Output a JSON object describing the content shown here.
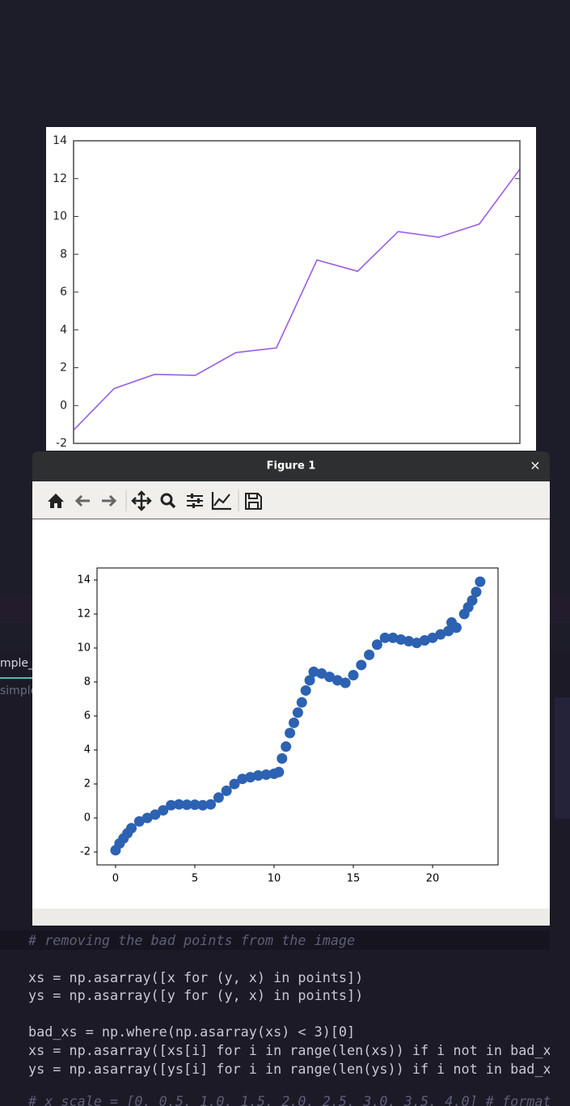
{
  "chart_data": [
    {
      "type": "line",
      "x": [
        0,
        1,
        2,
        3,
        4,
        5,
        6,
        7,
        8,
        9,
        10,
        11
      ],
      "values": [
        -1.3,
        0.9,
        1.65,
        1.6,
        2.8,
        3.05,
        7.7,
        7.1,
        9.2,
        8.9,
        9.6,
        12.5
      ],
      "color": "#9b5de5",
      "xlim": [
        0,
        11
      ],
      "ylim": [
        -2,
        14
      ],
      "yticks": [
        -2,
        0,
        2,
        4,
        6,
        8,
        10,
        12,
        14
      ]
    },
    {
      "type": "scatter",
      "x": [
        0,
        0.25,
        0.5,
        0.75,
        1,
        1.5,
        2,
        2.5,
        3,
        3.5,
        4,
        4.5,
        5,
        5.5,
        6,
        6.5,
        7,
        7.5,
        8,
        8.5,
        9,
        9.5,
        10,
        10.3,
        10.5,
        10.75,
        11,
        11.25,
        11.5,
        11.75,
        12,
        12.25,
        12.5,
        13,
        13.5,
        14,
        14.5,
        15,
        15.5,
        16,
        16.5,
        17,
        17.5,
        18,
        18.5,
        19,
        19.5,
        20,
        20.5,
        21,
        21.2,
        21.5,
        22,
        22.25,
        22.5,
        22.75,
        23
      ],
      "values": [
        -1.9,
        -1.5,
        -1.2,
        -0.9,
        -0.6,
        -0.2,
        0.0,
        0.2,
        0.45,
        0.75,
        0.8,
        0.78,
        0.78,
        0.75,
        0.8,
        1.2,
        1.6,
        2.0,
        2.3,
        2.4,
        2.5,
        2.55,
        2.6,
        2.7,
        3.5,
        4.2,
        5.0,
        5.6,
        6.2,
        6.8,
        7.5,
        8.1,
        8.6,
        8.5,
        8.3,
        8.1,
        7.95,
        8.4,
        9.0,
        9.6,
        10.2,
        10.6,
        10.6,
        10.5,
        10.4,
        10.3,
        10.45,
        10.6,
        10.8,
        11.0,
        11.5,
        11.2,
        12.0,
        12.4,
        12.8,
        13.3,
        13.9
      ],
      "color": "#2c62b1",
      "xlim": [
        -1.17,
        24.13
      ],
      "ylim": [
        -2.76,
        14.71
      ],
      "xticks": [
        0,
        5,
        10,
        15,
        20
      ],
      "yticks": [
        -2,
        0,
        2,
        4,
        6,
        8,
        10,
        12,
        14
      ]
    }
  ],
  "window": {
    "title": "Figure 1",
    "close": "×"
  },
  "editor": {
    "tab": "mple_",
    "breadcrumb": "simple",
    "code_lines": [
      "# removing the bad points from the image",
      "xs = np.asarray([x for (y, x) in points])",
      "ys = np.asarray([y for (y, x) in points])",
      "bad_xs = np.where(np.asarray(xs) < 3)[0]",
      "xs = np.asarray([xs[i] for i in range(len(xs)) if i not in bad_x",
      "ys = np.asarray([ys[i] for i in range(len(ys)) if i not in bad_x",
      "# x_scale = [0, 0.5, 1.0, 1.5, 2.0, 2.5, 3.0, 3.5, 4.0] # format"
    ]
  }
}
